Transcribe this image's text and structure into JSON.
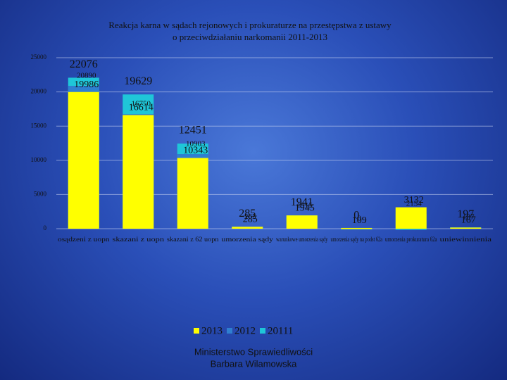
{
  "chart_data": {
    "type": "bar",
    "title": "Reakcja karna w sądach rejonowych i prokuraturze na przestępstwa z ustawy",
    "subtitle": "o przeciwdziałaniu narkomanii 2011-2013",
    "categories": [
      "osądzeni z uopn",
      "skazani z uopn",
      "skazani z 62 uopn",
      "umorzenia sądy",
      "warunkowe umorzenia sądy",
      "umorzenia sądy na podst 62a",
      "umorzenia prokuratura 62a",
      "uniewinnienia"
    ],
    "series": [
      {
        "name": "2013",
        "color": "#ffff00",
        "values": [
          19986,
          16614,
          10343,
          285,
          1945,
          109,
          3132,
          167
        ]
      },
      {
        "name": "2012",
        "color": "#2f7fd0",
        "values": [
          20890,
          16750,
          10903,
          265,
          1915,
          0,
          2154,
          187
        ]
      },
      {
        "name": "20111",
        "color": "#1fc6d8",
        "values": [
          22076,
          19629,
          12451,
          285,
          1941,
          0,
          0,
          197
        ]
      }
    ],
    "ylim": [
      0,
      25000
    ],
    "yticks": [
      0,
      5000,
      10000,
      15000,
      20000,
      25000
    ],
    "grid": true,
    "footer": [
      "Ministerstwo Sprawiedliwości",
      "Barbara Wilamowska"
    ]
  }
}
